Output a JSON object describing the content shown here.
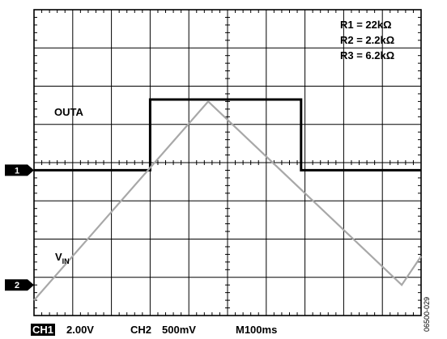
{
  "chart_data": {
    "type": "line",
    "title": "",
    "grid": true,
    "divisions": {
      "x": 10,
      "y": 8
    },
    "series": [
      {
        "name": "OUTA",
        "channel": 1,
        "color": "#000000",
        "x_div": [
          0,
          3.0,
          3.0,
          6.9,
          6.9,
          10
        ],
        "y_div": [
          -0.2,
          -0.2,
          1.65,
          1.65,
          -0.2,
          -0.2
        ]
      },
      {
        "name": "V",
        "name_subscript": "IN",
        "channel": 2,
        "color": "#a8a8a8",
        "x_div": [
          0,
          4.5,
          9.5,
          10
        ],
        "y_div": [
          -3.6,
          1.6,
          -3.2,
          -2.45
        ]
      }
    ],
    "channel_markers": [
      {
        "label": "1",
        "y_div": -0.2
      },
      {
        "label": "2",
        "y_div": -3.2
      }
    ],
    "legend_lines": [
      "R1 = 22kΩ",
      "R2 = 2.2kΩ",
      "R3 = 6.2kΩ"
    ],
    "trace_labels": {
      "outa": "OUTA",
      "vin_main": "V",
      "vin_sub": "IN"
    },
    "footer": {
      "ch1_label": "CH1",
      "ch1_scale": "2.00V",
      "ch2_label": "CH2",
      "ch2_scale": "500mV",
      "time_scale": "M100ms"
    },
    "figure_id": "06500-029"
  }
}
